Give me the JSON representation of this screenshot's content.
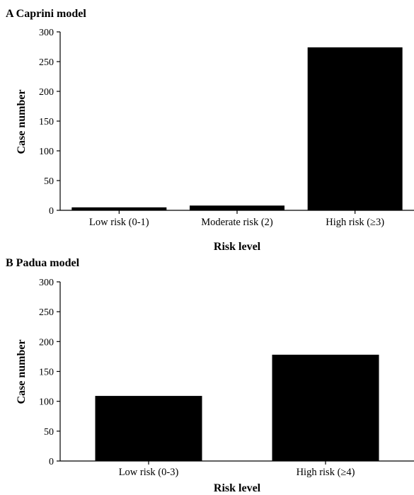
{
  "chart_data": [
    {
      "type": "bar",
      "title": "A Caprini model",
      "xlabel": "Risk level",
      "ylabel": "Case number",
      "categories": [
        "Low risk (0-1)",
        "Moderate risk (2)",
        "High risk (≥3)"
      ],
      "values": [
        5,
        8,
        274
      ],
      "ylim": [
        0,
        300
      ],
      "yticks": [
        0,
        50,
        100,
        150,
        200,
        250,
        300
      ],
      "bar_color": "#000000",
      "grid": false,
      "legend": "none"
    },
    {
      "type": "bar",
      "title": "B Padua model",
      "xlabel": "Risk level",
      "ylabel": "Case number",
      "categories": [
        "Low risk (0-3)",
        "High risk (≥4)"
      ],
      "values": [
        109,
        178
      ],
      "ylim": [
        0,
        300
      ],
      "yticks": [
        0,
        50,
        100,
        150,
        200,
        250,
        300
      ],
      "bar_color": "#000000",
      "grid": false,
      "legend": "none"
    }
  ]
}
